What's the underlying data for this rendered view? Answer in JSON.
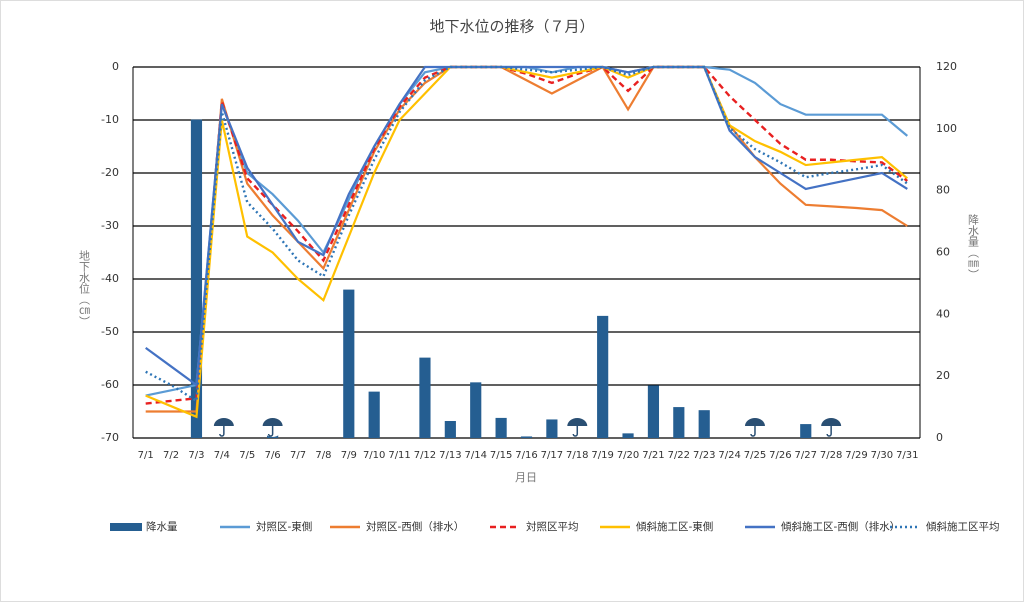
{
  "chart_data": {
    "type": "bar-line",
    "title": "地下水位の推移（７月）",
    "x_label": "月日",
    "y_label": "地下水位（㎝）",
    "y2_label": "降水量（㎜）",
    "categories": [
      "7/1",
      "7/2",
      "7/3",
      "7/4",
      "7/5",
      "7/6",
      "7/7",
      "7/8",
      "7/9",
      "7/10",
      "7/11",
      "7/12",
      "7/13",
      "7/14",
      "7/15",
      "7/16",
      "7/17",
      "7/18",
      "7/19",
      "7/20",
      "7/21",
      "7/22",
      "7/23",
      "7/24",
      "7/25",
      "7/26",
      "7/27",
      "7/28",
      "7/29",
      "7/30",
      "7/31"
    ],
    "ylim": [
      -70,
      0
    ],
    "yticks": [
      0,
      -10,
      -20,
      -30,
      -40,
      -50,
      -60,
      -70
    ],
    "y2lim": [
      0,
      120
    ],
    "y2ticks": [
      0,
      20,
      40,
      60,
      80,
      100,
      120
    ],
    "grid": true,
    "legend": "bottom",
    "series": [
      {
        "name": "降水量",
        "type": "bar",
        "axis": "y2",
        "color": "#255e91",
        "values": [
          0,
          0,
          103,
          0,
          0,
          1,
          0,
          0,
          48,
          15,
          0,
          26,
          5.5,
          18,
          6.5,
          0.5,
          6,
          0,
          39.5,
          1.5,
          17,
          10,
          9,
          0,
          0,
          0,
          4.5,
          0,
          0,
          0,
          0
        ]
      },
      {
        "name": "対照区-東側",
        "type": "line",
        "style": "solid",
        "color": "#5b9bd5",
        "values": [
          -62,
          -61,
          -60,
          -7,
          -20,
          -24,
          -29,
          -35,
          -25,
          -15,
          -7,
          -1,
          0,
          0,
          0,
          0,
          -1,
          0,
          0,
          -1,
          0,
          0,
          0,
          -0.5,
          -3,
          -7,
          -9,
          -9,
          -9,
          -9,
          -13
        ]
      },
      {
        "name": "対照区-西側（排水）",
        "type": "line",
        "style": "solid",
        "color": "#ed7d31",
        "values": [
          -65,
          -65,
          -65,
          -6,
          -22,
          -28,
          -33,
          -38,
          -27,
          -16,
          -8,
          -3,
          0,
          0,
          0,
          -2.5,
          -5,
          -2.5,
          0,
          -8,
          0,
          0,
          0,
          -11,
          -17,
          -22,
          -26,
          -26.3,
          -26.6,
          -27,
          -30
        ]
      },
      {
        "name": "対照区平均",
        "type": "line",
        "style": "dashed",
        "color": "#e82020",
        "values": [
          -63.5,
          -63,
          -62.5,
          -6.5,
          -21,
          -26,
          -31,
          -36.5,
          -26,
          -15.5,
          -7.5,
          -2,
          0,
          0,
          0,
          -1.3,
          -3,
          -1.3,
          0,
          -4.5,
          0,
          0,
          0,
          -5.5,
          -10,
          -14.5,
          -17.5,
          -17.5,
          -17.8,
          -18,
          -21.5
        ]
      },
      {
        "name": "傾斜施工区-東側",
        "type": "line",
        "style": "solid",
        "color": "#ffc000",
        "values": [
          -62,
          -64,
          -66,
          -10,
          -32,
          -35,
          -40,
          -44,
          -32,
          -20,
          -10,
          -5,
          0,
          0,
          0,
          -1,
          -2,
          -1,
          0,
          -2,
          0,
          0,
          0,
          -11,
          -14,
          -16,
          -18.5,
          -18,
          -17.5,
          -17,
          -21
        ]
      },
      {
        "name": "傾斜施工区-西側（排水）",
        "type": "line",
        "style": "solid",
        "color": "#4472c4",
        "values": [
          -53,
          -56.5,
          -60,
          -7,
          -19,
          -26,
          -33,
          -35.5,
          -24,
          -15,
          -7,
          0,
          0,
          0,
          0,
          0,
          0,
          0,
          0,
          -1,
          0,
          0,
          0,
          -12,
          -17,
          -20,
          -23,
          -22,
          -21,
          -20,
          -23
        ]
      },
      {
        "name": "傾斜施工区平均",
        "type": "line",
        "style": "dotted",
        "color": "#2e75b6",
        "values": [
          -57.5,
          -60,
          -63,
          -8.5,
          -25.5,
          -30.5,
          -36.5,
          -39.5,
          -28,
          -17.5,
          -8.5,
          -2.5,
          0,
          0,
          0,
          -0.5,
          -1,
          -0.5,
          0,
          -1.5,
          0,
          0,
          0,
          -11.5,
          -15.5,
          -18,
          -20.8,
          -20,
          -19.3,
          -18.5,
          -22
        ]
      }
    ]
  }
}
